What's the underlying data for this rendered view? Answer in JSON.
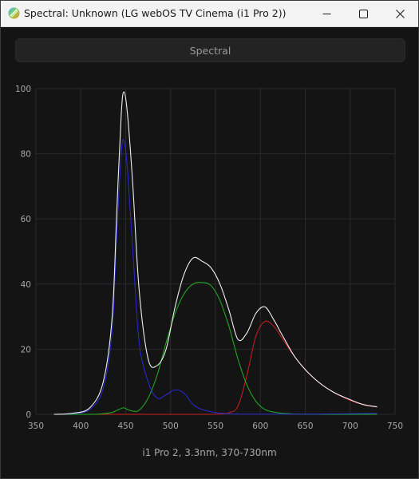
{
  "window": {
    "title": "Spectral: Unknown (LG webOS TV Cinema (i1 Pro 2))",
    "app_icon": "spectral-app-icon",
    "controls": [
      "minimize-icon",
      "maximize-icon",
      "close-icon"
    ]
  },
  "tab": {
    "label": "Spectral"
  },
  "caption": "i1 Pro 2, 3.3nm, 370-730nm",
  "colors": {
    "background": "#141414",
    "white_series": "#f0f0f0",
    "blue_series": "#2a2ad8",
    "green_series": "#22b322",
    "red_series": "#cc1f1f",
    "grid": "#2a2a2a",
    "tick_text": "#a8a8a8"
  },
  "chart_data": {
    "type": "line",
    "title": "",
    "xlabel": "",
    "ylabel": "",
    "xlim": [
      350,
      750
    ],
    "ylim": [
      0,
      100
    ],
    "xticks": [
      350,
      400,
      450,
      500,
      550,
      600,
      650,
      700,
      750
    ],
    "yticks": [
      0,
      20,
      40,
      60,
      80,
      100
    ],
    "grid": true,
    "x": [
      370,
      390,
      410,
      425,
      435,
      440,
      445,
      448,
      452,
      458,
      465,
      475,
      485,
      495,
      505,
      515,
      525,
      535,
      545,
      555,
      565,
      575,
      585,
      595,
      605,
      615,
      625,
      640,
      660,
      680,
      700,
      715,
      730
    ],
    "series": [
      {
        "color_key": "white_series",
        "values": [
          0,
          0.3,
          2,
          10,
          30,
          62,
          92,
          99,
          92,
          70,
          38,
          17,
          15,
          20,
          33,
          43,
          48,
          47,
          45,
          40,
          32,
          23,
          25,
          31,
          33,
          29,
          24,
          17,
          11,
          7,
          4.5,
          3,
          2.3
        ]
      },
      {
        "color_key": "blue_series",
        "values": [
          0,
          0.2,
          1.5,
          8,
          26,
          55,
          80,
          84,
          75,
          50,
          22,
          10,
          5,
          6,
          7.5,
          6.5,
          3,
          1.5,
          0.8,
          0.4,
          0.2,
          0.1,
          0.05,
          0.05,
          0.05,
          0.05,
          0.05,
          0.05,
          0.1,
          0.15,
          0.2,
          0.25,
          0.3
        ]
      },
      {
        "color_key": "green_series",
        "values": [
          0,
          0,
          0,
          0.2,
          0.6,
          1.2,
          1.8,
          2,
          1.5,
          1,
          1.3,
          5,
          12,
          22,
          31,
          37,
          40,
          40.5,
          39.5,
          35,
          27,
          17,
          9,
          4,
          1.5,
          0.7,
          0.3,
          0.1,
          0.05,
          0,
          0,
          0,
          0
        ]
      },
      {
        "color_key": "red_series",
        "values": [
          0,
          0,
          0,
          0,
          0,
          0,
          0,
          0,
          0,
          0,
          0,
          0,
          0,
          0,
          0,
          0,
          0,
          0,
          0,
          0.1,
          0.5,
          2.5,
          12,
          24,
          28.5,
          27,
          23,
          17,
          11,
          7,
          4.3,
          2.9,
          2.2
        ]
      }
    ]
  }
}
